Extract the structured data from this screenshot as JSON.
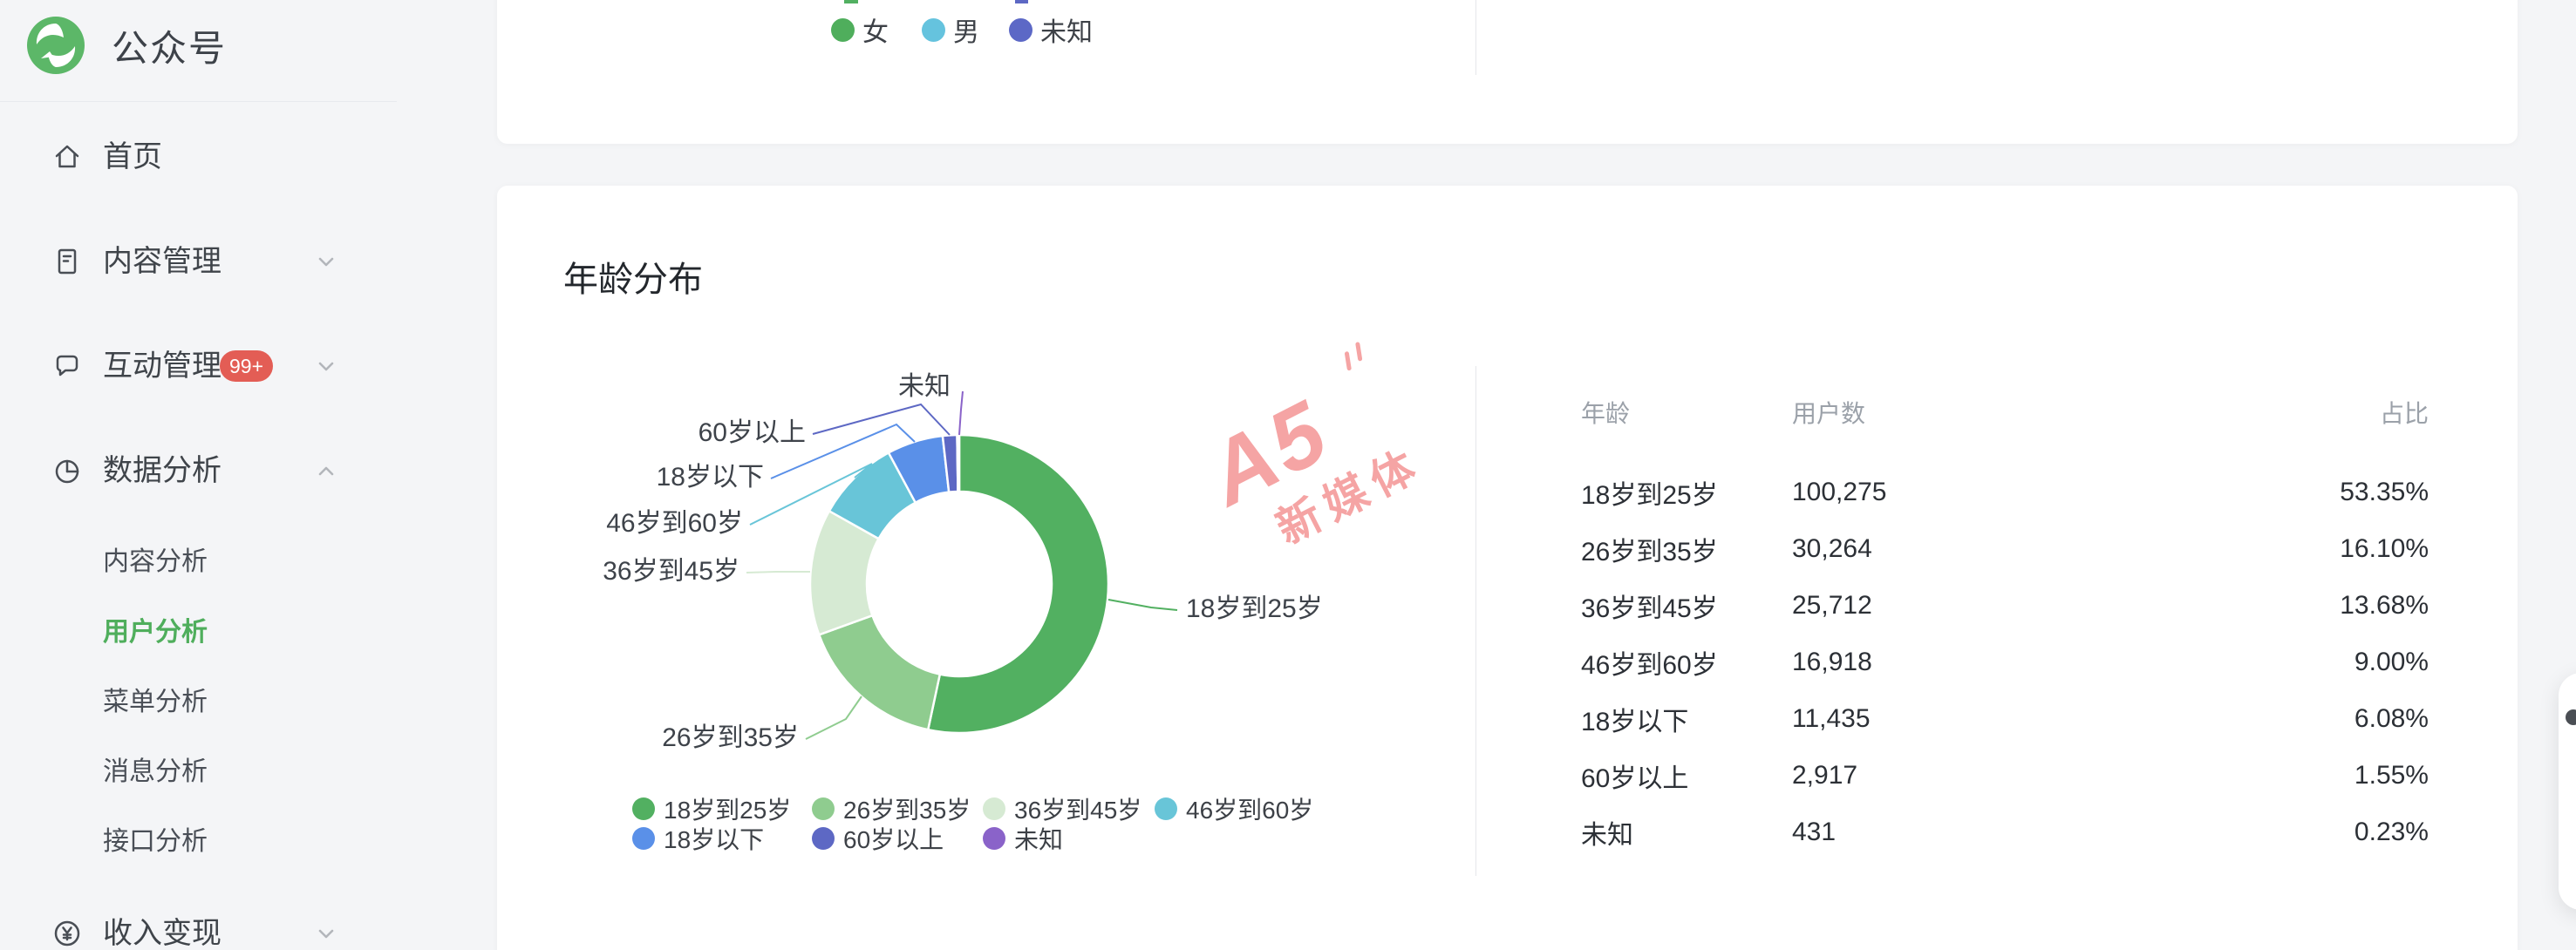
{
  "brand": {
    "name": "公众号",
    "logo_green": "#5cb768"
  },
  "sidebar": {
    "active_color": "#4fae5c",
    "badge_color": "#e35d55",
    "items": [
      {
        "id": "home",
        "label": "首页",
        "icon": "home-icon",
        "chevron": null,
        "badge": null
      },
      {
        "id": "content-manage",
        "label": "内容管理",
        "icon": "document-icon",
        "chevron": "down",
        "badge": null
      },
      {
        "id": "interaction-manage",
        "label": "互动管理",
        "icon": "chat-icon",
        "chevron": "down",
        "badge": "99+"
      },
      {
        "id": "data-analysis",
        "label": "数据分析",
        "icon": "pie-icon",
        "chevron": "up",
        "badge": null,
        "children": [
          {
            "id": "content-analysis",
            "label": "内容分析",
            "active": false
          },
          {
            "id": "user-analysis",
            "label": "用户分析",
            "active": true
          },
          {
            "id": "menu-analysis",
            "label": "菜单分析",
            "active": false
          },
          {
            "id": "message-analysis",
            "label": "消息分析",
            "active": false
          },
          {
            "id": "api-analysis",
            "label": "接口分析",
            "active": false
          }
        ]
      },
      {
        "id": "revenue",
        "label": "收入变现",
        "icon": "yuan-icon",
        "chevron": "down",
        "badge": null
      }
    ]
  },
  "gender_card": {
    "legend": [
      {
        "label": "女",
        "color": "#4fae5c"
      },
      {
        "label": "男",
        "color": "#65c3de"
      },
      {
        "label": "未知",
        "color": "#5c68c6"
      }
    ]
  },
  "age_card": {
    "title": "年龄分布",
    "table": {
      "headers": [
        "年龄",
        "用户数",
        "占比"
      ],
      "rows": [
        [
          "18岁到25岁",
          "100,275",
          "53.35%"
        ],
        [
          "26岁到35岁",
          "30,264",
          "16.10%"
        ],
        [
          "36岁到45岁",
          "25,712",
          "13.68%"
        ],
        [
          "46岁到60岁",
          "16,918",
          "9.00%"
        ],
        [
          "18岁以下",
          "11,435",
          "6.08%"
        ],
        [
          "60岁以上",
          "2,917",
          "1.55%"
        ],
        [
          "未知",
          "431",
          "0.23%"
        ]
      ]
    }
  },
  "chart_data": [
    {
      "type": "pie",
      "note": "gender chart mostly cut off at top of page, only legend visible",
      "categories": [
        "女",
        "男",
        "未知"
      ],
      "colors": [
        "#4fae5c",
        "#65c3de",
        "#5c68c6"
      ],
      "legend_position": "top"
    },
    {
      "type": "pie",
      "subtype": "donut",
      "title": "年龄分布",
      "categories": [
        "18岁到25岁",
        "26岁到35岁",
        "36岁到45岁",
        "46岁到60岁",
        "18岁以下",
        "60岁以上",
        "未知"
      ],
      "values": [
        100275,
        30264,
        25712,
        16918,
        11435,
        2917,
        431
      ],
      "percents": [
        53.35,
        16.1,
        13.68,
        9.0,
        6.08,
        1.55,
        0.23
      ],
      "colors": [
        "#52b061",
        "#8fcc8f",
        "#d6ead3",
        "#68c5d8",
        "#5a90e8",
        "#5d68c4",
        "#8a63c9"
      ],
      "legend_position": "bottom",
      "inner_radius_ratio": 0.62,
      "start_angle": "top, clockwise"
    }
  ],
  "watermark": {
    "text_primary": "A5",
    "text_secondary": "新媒体",
    "color": "#f5a0a0"
  }
}
